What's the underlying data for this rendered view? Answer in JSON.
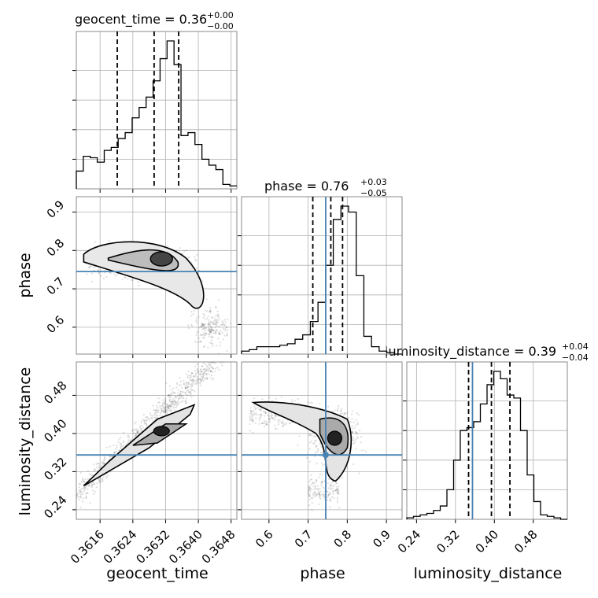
{
  "titles": {
    "geocent_time": {
      "name": "geocent_time",
      "value": "0.36",
      "plus": "+0.00",
      "minus": "−0.00"
    },
    "phase": {
      "name": "phase",
      "value": "0.76",
      "plus": "+0.03",
      "minus": "−0.05"
    },
    "luminosity_distance": {
      "name": "luminosity_distance",
      "value": "0.39",
      "plus": "+0.04",
      "minus": "−0.04"
    }
  },
  "axis_labels": {
    "geocent_time": "geocent_time",
    "phase": "phase",
    "luminosity_distance": "luminosity_distance"
  },
  "ticks": {
    "geocent_time": [
      "0.3616",
      "0.3624",
      "0.3632",
      "0.3640",
      "0.3648"
    ],
    "phase": [
      "0.6",
      "0.7",
      "0.8",
      "0.9"
    ],
    "luminosity_distance": [
      "0.24",
      "0.32",
      "0.40",
      "0.48"
    ]
  },
  "colors": {
    "truth_line": "#4682b4",
    "contour": "#000000",
    "grid": "#b0b0b0",
    "frame": "#888888"
  },
  "chart_data": {
    "type": "corner",
    "parameters": [
      "geocent_time",
      "phase",
      "luminosity_distance"
    ],
    "ranges": {
      "geocent_time": [
        0.36102,
        0.36494
      ],
      "phase": [
        0.53,
        0.94
      ],
      "luminosity_distance": [
        0.22,
        0.55
      ]
    },
    "truths": {
      "phase": 0.745,
      "luminosity_distance": 0.355
    },
    "quantiles": {
      "geocent_time": [
        0.36202,
        0.36292,
        0.36352
      ],
      "phase": [
        0.712,
        0.758,
        0.788
      ],
      "luminosity_distance": [
        0.347,
        0.394,
        0.432
      ]
    },
    "histograms": {
      "geocent_time": {
        "edges": [
          0.36102,
          0.36494
        ],
        "counts": [
          0.12,
          0.22,
          0.21,
          0.18,
          0.26,
          0.28,
          0.34,
          0.38,
          0.48,
          0.55,
          0.62,
          0.73,
          0.88,
          1.0,
          0.84,
          0.36,
          0.38,
          0.3,
          0.2,
          0.16,
          0.13,
          0.03,
          0.02
        ]
      },
      "phase": {
        "edges": [
          0.53,
          0.94
        ],
        "counts": [
          0.02,
          0.03,
          0.05,
          0.05,
          0.05,
          0.06,
          0.07,
          0.1,
          0.13,
          0.22,
          0.35,
          0.6,
          0.91,
          1.0,
          0.96,
          0.53,
          0.12,
          0.05,
          0.02,
          0.01,
          0.0
        ]
      },
      "luminosity_distance": {
        "edges": [
          0.22,
          0.55
        ],
        "counts": [
          0.01,
          0.02,
          0.03,
          0.04,
          0.06,
          0.09,
          0.2,
          0.4,
          0.6,
          0.62,
          0.66,
          0.78,
          0.91,
          1.0,
          0.95,
          0.84,
          0.82,
          0.6,
          0.3,
          0.12,
          0.03,
          0.02,
          0.01,
          0.0
        ]
      }
    },
    "density_centers": {
      "geocent_time|phase": {
        "x": 0.3631,
        "y": 0.778
      },
      "geocent_time|luminosity_distance": {
        "x": 0.3631,
        "y": 0.405
      },
      "phase|luminosity_distance": {
        "x": 0.768,
        "y": 0.39
      }
    }
  }
}
